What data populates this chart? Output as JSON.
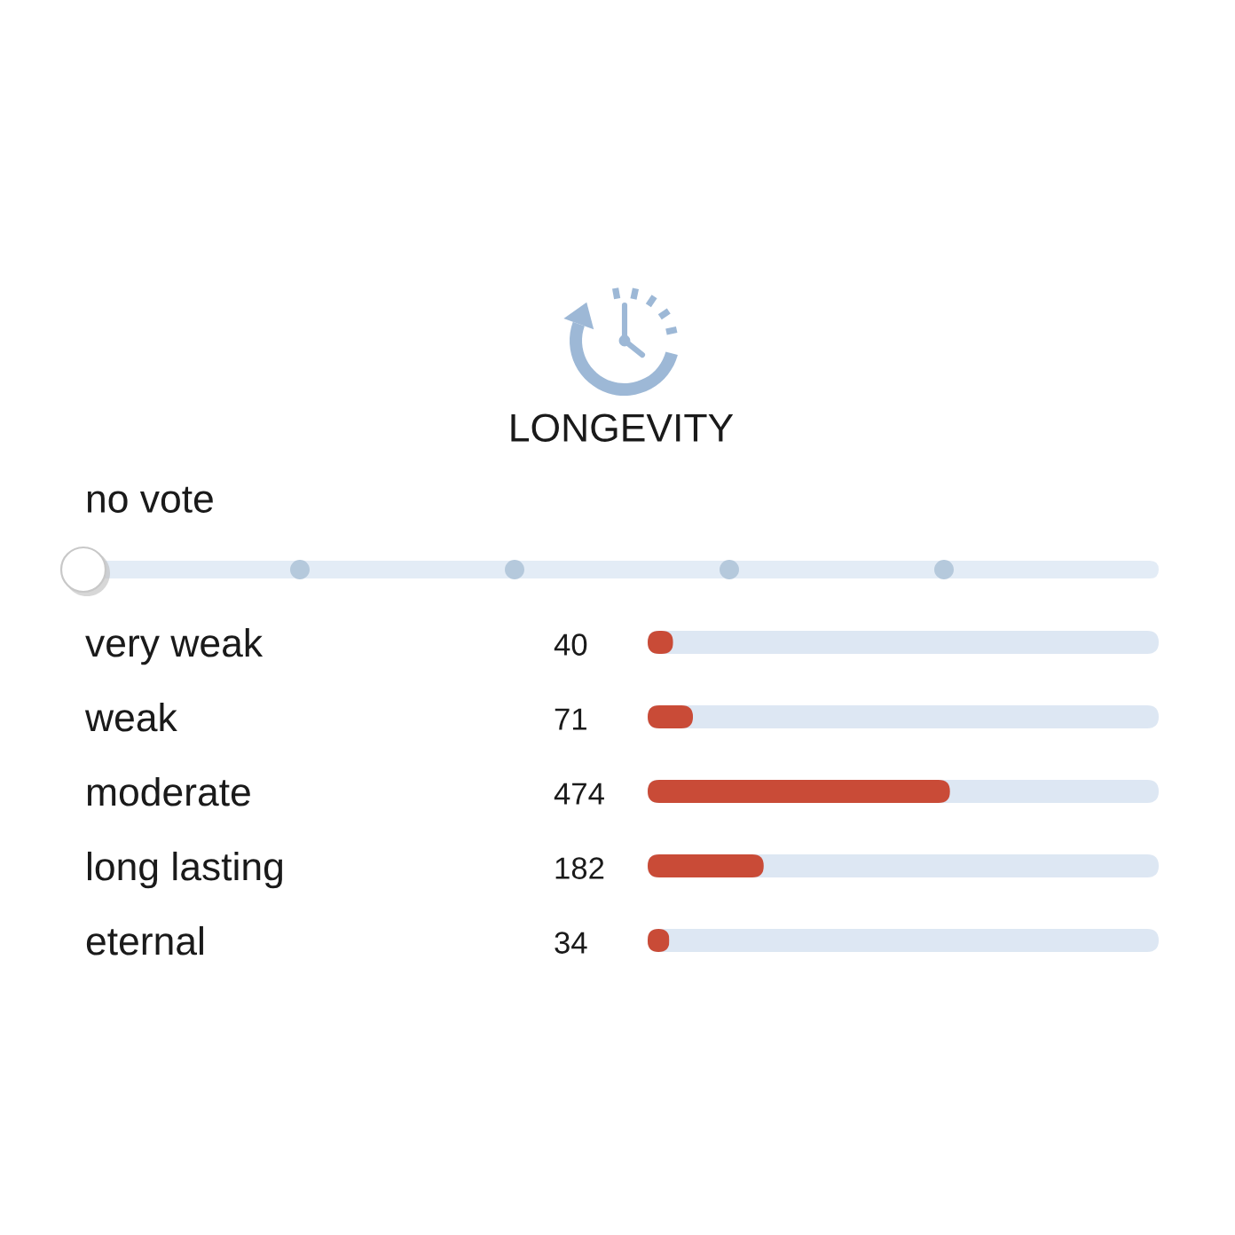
{
  "chart_data": {
    "type": "bar",
    "orientation": "horizontal",
    "title": "LONGEVITY",
    "annotations": [
      "no vote"
    ],
    "categories": [
      "very weak",
      "weak",
      "moderate",
      "long lasting",
      "eternal"
    ],
    "values": [
      40,
      71,
      474,
      182,
      34
    ],
    "color": "#c94b37",
    "xlim": [
      0,
      801
    ],
    "data_labels": true,
    "tick_labels": "y"
  }
}
